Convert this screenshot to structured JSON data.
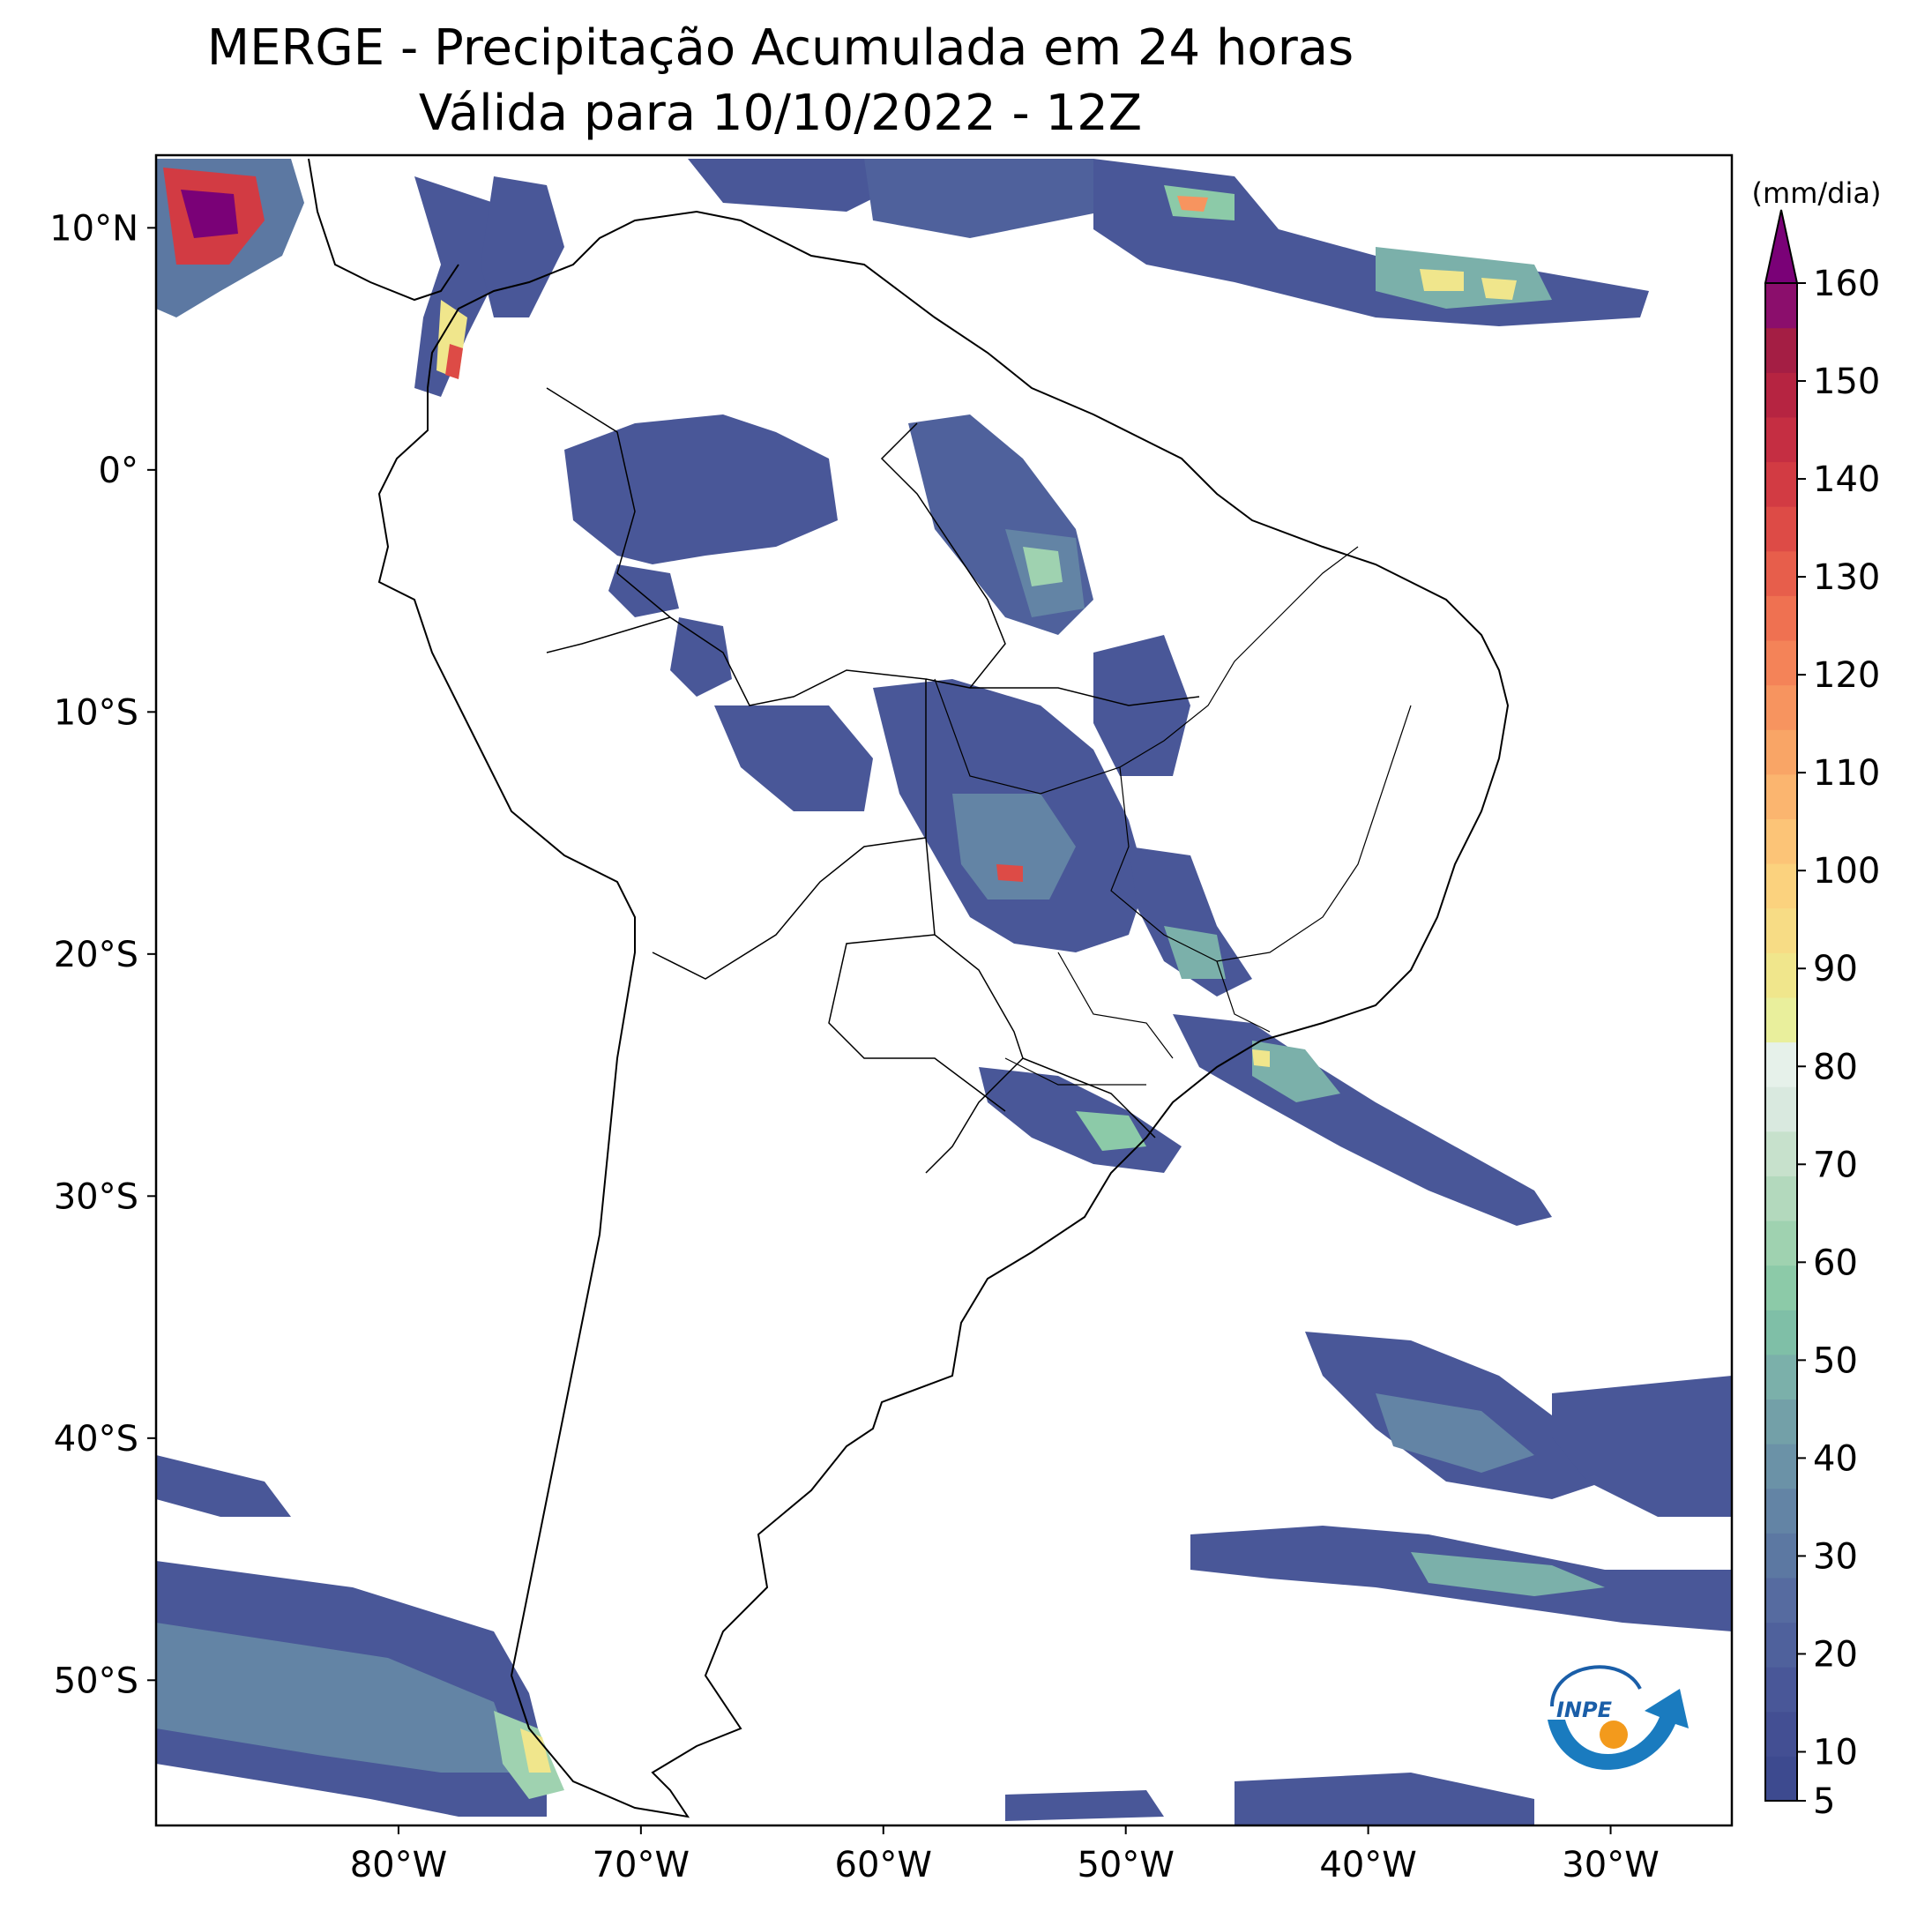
{
  "title": {
    "line1": "MERGE - Precipitação Acumulada em 24 horas",
    "line2": "Válida para 10/10/2022 - 12Z"
  },
  "map": {
    "lon_range": [
      -90,
      -25
    ],
    "lat_range": [
      -56,
      13
    ],
    "lon_ticks": [
      "80°W",
      "70°W",
      "60°W",
      "50°W",
      "40°W",
      "30°W"
    ],
    "lon_tick_values": [
      -80,
      -70,
      -60,
      -50,
      -40,
      -30
    ],
    "lat_ticks": [
      "10°N",
      "0°",
      "10°S",
      "20°S",
      "30°S",
      "40°S",
      "50°S"
    ],
    "lat_tick_values": [
      10,
      0,
      -10,
      -20,
      -30,
      -40,
      -50
    ]
  },
  "colorbar": {
    "unit": "(mm/dia)",
    "labels": [
      "5",
      "10",
      "20",
      "30",
      "40",
      "50",
      "60",
      "70",
      "80",
      "90",
      "100",
      "110",
      "120",
      "130",
      "140",
      "150",
      "160"
    ],
    "min": 5,
    "max": 160,
    "extend": "max",
    "colors": [
      "#3d4a8f",
      "#434f93",
      "#495798",
      "#4f619c",
      "#566ba0",
      "#5c78a2",
      "#6384a5",
      "#6b92a7",
      "#73a0a8",
      "#7bb0aa",
      "#7fbfa7",
      "#8ccaa8",
      "#9fd2b0",
      "#b3d9bd",
      "#c7e1cc",
      "#d9e9df",
      "#e6f1ea",
      "#e9ef9c",
      "#f0e68c",
      "#f7dc85",
      "#fbd27e",
      "#fcc477",
      "#fbb56f",
      "#f9a566",
      "#f7945f",
      "#f48358",
      "#ef7151",
      "#e75e4b",
      "#dd4b46",
      "#d23b43",
      "#c52e42",
      "#b62441",
      "#a41e44",
      "#8b0e6c"
    ],
    "extend_color": "#7a0177"
  },
  "logo": {
    "text": "INPE"
  }
}
